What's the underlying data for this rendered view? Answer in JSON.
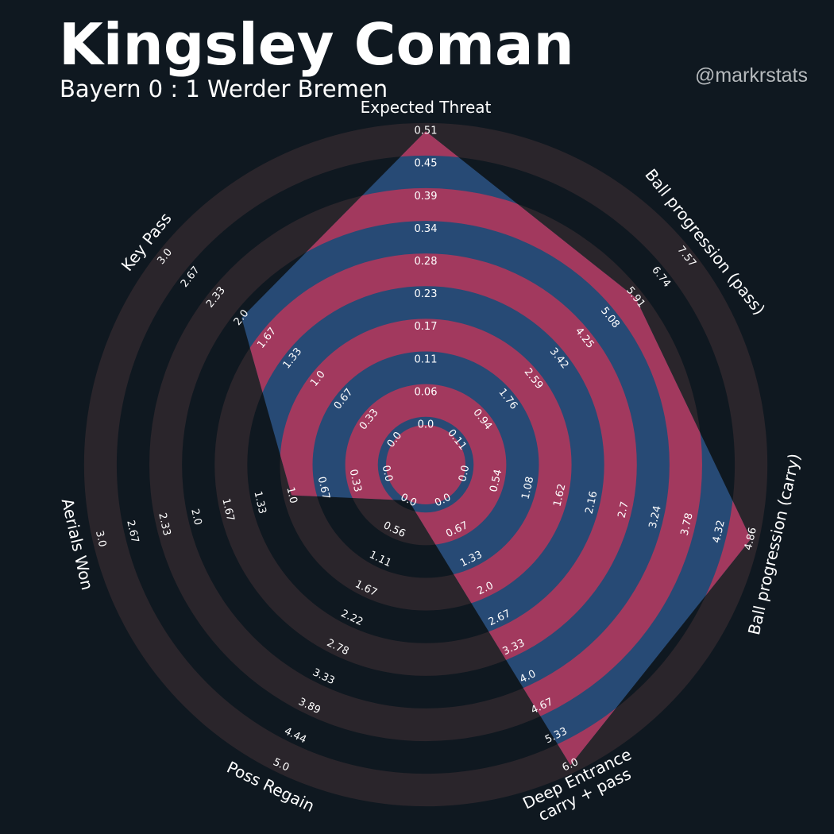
{
  "header": {
    "title": "Kingsley Coman",
    "subtitle": "Bayern 0 : 1 Werder Bremen",
    "credit": "@markrstats"
  },
  "colors": {
    "background": "#0f1820",
    "ring": "#2a252b",
    "polygon": "#274a75",
    "highlight_ring": "#a2395e",
    "text": "#ffffff",
    "credit": "#b6babd"
  },
  "chart_data": {
    "type": "radar",
    "title": "Kingsley Coman",
    "subtitle": "Bayern 0 : 1 Werder Bremen",
    "num_rings": 9,
    "axes": [
      {
        "name": "Expected Threat",
        "min": 0.0,
        "max": 0.51,
        "value": 0.51,
        "ticks": [
          "0.0",
          "0.06",
          "0.11",
          "0.17",
          "0.23",
          "0.28",
          "0.34",
          "0.39",
          "0.45",
          "0.51"
        ]
      },
      {
        "name": "Ball progression (pass)",
        "min": 0.11,
        "max": 7.57,
        "value": 5.91,
        "ticks": [
          "0.11",
          "0.94",
          "1.76",
          "2.59",
          "3.42",
          "4.25",
          "5.08",
          "5.91",
          "6.74",
          "7.57"
        ]
      },
      {
        "name": "Ball progression (carry)",
        "min": 0.0,
        "max": 4.86,
        "value": 4.86,
        "ticks": [
          "0.0",
          "0.54",
          "1.08",
          "1.62",
          "2.16",
          "2.7",
          "3.24",
          "3.78",
          "4.32",
          "4.86"
        ]
      },
      {
        "name": "Deep Entrance\ncarry + pass",
        "min": 0.0,
        "max": 6.0,
        "value": 6.0,
        "ticks": [
          "0.0",
          "0.67",
          "1.33",
          "2.0",
          "2.67",
          "3.33",
          "4.0",
          "4.67",
          "5.33",
          "6.0"
        ]
      },
      {
        "name": "Poss Regain",
        "min": 0.0,
        "max": 5.0,
        "value": 0.0,
        "ticks": [
          "0.0",
          "0.56",
          "1.11",
          "1.67",
          "2.22",
          "2.78",
          "3.33",
          "3.89",
          "4.44",
          "5.0"
        ]
      },
      {
        "name": "Aerials Won",
        "min": 0.0,
        "max": 3.0,
        "value": 1.0,
        "ticks": [
          "0.0",
          "0.33",
          "0.67",
          "1.0",
          "1.33",
          "1.67",
          "2.0",
          "2.33",
          "2.67",
          "3.0"
        ]
      },
      {
        "name": "Key Pass",
        "min": 0.0,
        "max": 3.0,
        "value": 2.0,
        "ticks": [
          "0.0",
          "0.33",
          "0.67",
          "1.0",
          "1.33",
          "1.67",
          "2.0",
          "2.33",
          "2.67",
          "3.0"
        ]
      }
    ]
  }
}
